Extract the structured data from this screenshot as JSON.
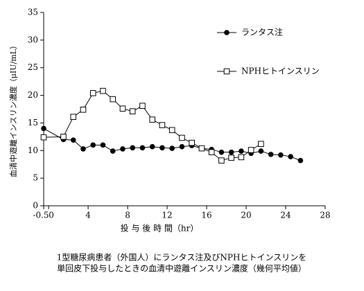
{
  "chart_data": {
    "type": "line",
    "xlabel": "投 与 後 時 間（hr）",
    "ylabel": "血清中遊離インスリン濃度（μIU/mL）",
    "caption": [
      "1型糖尿病患者（外国人）にランタス注及びNPHヒトインスリンを",
      "単回皮下投与したときの血清中遊離インスリン濃度（幾何平均値）"
    ],
    "xlim": [
      -0.5,
      28
    ],
    "xticks": [
      -0.5,
      0,
      4,
      8,
      12,
      16,
      20,
      24,
      28
    ],
    "ylim": [
      0,
      35
    ],
    "yticks": [
      0,
      5,
      10,
      15,
      20,
      25,
      30,
      35
    ],
    "series": [
      {
        "name": "ランタス注",
        "color": "#000000",
        "marker": "circle",
        "x": [
          -0.5,
          1.5,
          2.5,
          3.5,
          4.5,
          5.5,
          6.5,
          7.5,
          8.5,
          9.5,
          10.5,
          11.5,
          12.5,
          13.5,
          14.5,
          15.5,
          16.5,
          17.5,
          18.5,
          19.5,
          20.5,
          21.5,
          22.5,
          23.5,
          24.5,
          25.5
        ],
        "values": [
          14,
          12,
          11.9,
          10.3,
          11,
          11,
          9.9,
          10.3,
          10.5,
          10.5,
          10.7,
          10.5,
          10.4,
          10.7,
          10.9,
          10.4,
          10.2,
          9.7,
          9.7,
          9.9,
          9.5,
          9.9,
          9.3,
          9.2,
          8.9,
          8.2
        ]
      },
      {
        "name": "NPHヒトインスリン",
        "color": "#000000",
        "marker": "square",
        "x": [
          -0.5,
          1.5,
          2.5,
          3.5,
          4.5,
          5.5,
          6.5,
          7.5,
          8.5,
          9.5,
          10.5,
          11.5,
          12.5,
          13.5,
          14.5,
          15.5,
          16.5,
          17.5,
          18.5,
          19.5,
          20.5,
          21.5
        ],
        "values": [
          12.4,
          12.5,
          16.1,
          17.4,
          20.4,
          20.8,
          19.3,
          17.6,
          17.1,
          18.1,
          15.6,
          14.6,
          13.7,
          12.3,
          11.4,
          10.4,
          9.7,
          8.2,
          8.7,
          8.8,
          10.1,
          11.2
        ]
      }
    ]
  }
}
